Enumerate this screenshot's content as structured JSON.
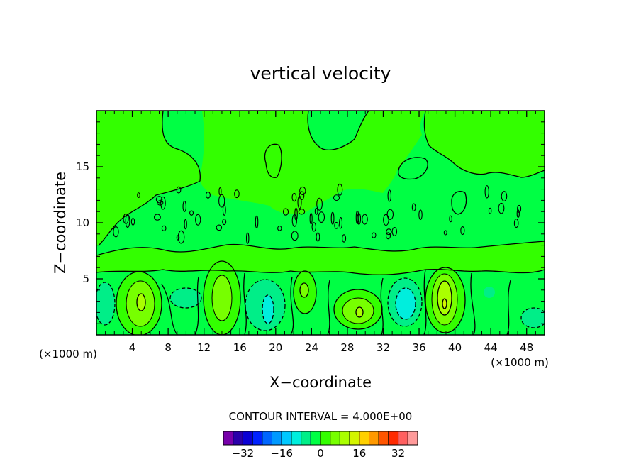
{
  "chart_data": {
    "type": "heatmap",
    "title": "vertical velocity",
    "xlabel": "X−coordinate",
    "ylabel": "Z−coordinate",
    "x_unit_label": "(×1000 m)",
    "y_unit_label": "(×1000 m)",
    "xlim": [
      0,
      50
    ],
    "ylim": [
      0,
      20
    ],
    "x_ticks": [
      4,
      8,
      12,
      16,
      20,
      24,
      28,
      32,
      36,
      40,
      44,
      48
    ],
    "y_ticks": [
      5,
      10,
      15
    ],
    "contour_interval_label": "CONTOUR INTERVAL = 4.000E+00",
    "contour_interval": 4.0,
    "background_level": 0,
    "colorbar": {
      "levels": [
        -36,
        -32,
        -28,
        -24,
        -20,
        -16,
        -12,
        -8,
        -4,
        0,
        4,
        8,
        12,
        16,
        20,
        24,
        28,
        32,
        36
      ],
      "tick_labels": [
        "−32",
        "−16",
        "0",
        "16",
        "32"
      ],
      "tick_values": [
        -32,
        -16,
        0,
        16,
        32
      ],
      "colors": [
        "#7700aa",
        "#2a00aa",
        "#0a00d4",
        "#0022ff",
        "#0066ff",
        "#0099ff",
        "#00c8ff",
        "#00eedd",
        "#00ee88",
        "#00ff44",
        "#33ff00",
        "#77ff00",
        "#aaff00",
        "#d4f500",
        "#ffd000",
        "#ff9900",
        "#ff5500",
        "#ff2a00",
        "#ff6060",
        "#ff9a9a"
      ]
    },
    "features": [
      {
        "type": "updraft",
        "x": 5.0,
        "z": 3.0,
        "peak": 12
      },
      {
        "type": "updraft",
        "x": 13.5,
        "z": 3.3,
        "peak": 8
      },
      {
        "type": "updraft",
        "x": 23.0,
        "z": 3.8,
        "peak": 8
      },
      {
        "type": "updraft",
        "x": 29.0,
        "z": 2.4,
        "peak": 12
      },
      {
        "type": "updraft",
        "x": 38.8,
        "z": 3.0,
        "peak": 16
      },
      {
        "type": "downdraft",
        "x": 2.0,
        "z": 3.5,
        "peak": -4
      },
      {
        "type": "downdraft",
        "x": 10.0,
        "z": 3.2,
        "peak": -4
      },
      {
        "type": "downdraft",
        "x": 18.5,
        "z": 2.7,
        "peak": -8
      },
      {
        "type": "downdraft",
        "x": 34.0,
        "z": 2.8,
        "peak": -8
      },
      {
        "type": "downdraft",
        "x": 48.0,
        "z": 1.5,
        "peak": -4
      }
    ]
  }
}
